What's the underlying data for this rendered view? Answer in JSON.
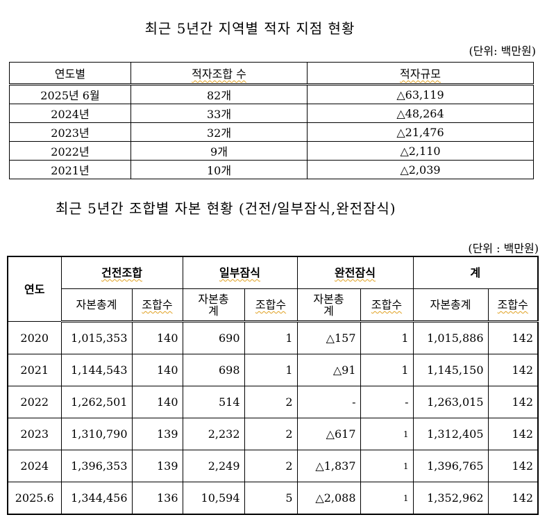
{
  "table1": {
    "title": "최근 5년간 지역별 적자 지점 현황",
    "unit": "(단위: 백만원)",
    "headers": [
      "연도별",
      "적자조합 수",
      "적자규모"
    ],
    "rows": [
      [
        "2025년 6월",
        "82개",
        "△63,119"
      ],
      [
        "2024년",
        "33개",
        "△48,264"
      ],
      [
        "2023년",
        "32개",
        "△21,476"
      ],
      [
        "2022년",
        "9개",
        "△2,110"
      ],
      [
        "2021년",
        "10개",
        "△2,039"
      ]
    ]
  },
  "table2": {
    "title": "최근 5년간 조합별 자본 현황 (건전/일부잠식,완전잠식)",
    "unit": "(단위 : 백만원)",
    "year_header": "연도",
    "groups": [
      "건전조합",
      "일부잠식",
      "완전잠식",
      "계"
    ],
    "subheaders": [
      "자본총계",
      "조합수",
      "자본총\n계",
      "조합수",
      "자본총\n계",
      "조합수",
      "자본총계",
      "조합수"
    ],
    "rows": [
      [
        "2020",
        "1,015,353",
        "140",
        "690",
        "1",
        "△157",
        "1",
        "1,015,886",
        "142"
      ],
      [
        "2021",
        "1,144,543",
        "140",
        "698",
        "1",
        "△91",
        "1",
        "1,145,150",
        "142"
      ],
      [
        "2022",
        "1,262,501",
        "140",
        "514",
        "2",
        "-",
        "-",
        "1,263,015",
        "142"
      ],
      [
        "2023",
        "1,310,790",
        "139",
        "2,232",
        "2",
        "△617",
        "1",
        "1,312,405",
        "142"
      ],
      [
        "2024",
        "1,396,353",
        "139",
        "2,249",
        "2",
        "△1,837",
        "1",
        "1,396,765",
        "142"
      ],
      [
        "2025.6",
        "1,344,456",
        "136",
        "10,594",
        "5",
        "△2,088",
        "1",
        "1,352,962",
        "142"
      ]
    ]
  }
}
